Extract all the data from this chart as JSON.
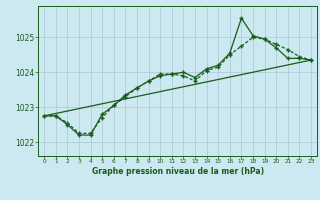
{
  "title": "Graphe pression niveau de la mer (hPa)",
  "bg_color": "#cce8f0",
  "grid_color": "#b0ccd8",
  "line_color": "#1a5c1a",
  "ylim": [
    1021.6,
    1025.9
  ],
  "xlim": [
    -0.5,
    23.5
  ],
  "yticks": [
    1022,
    1023,
    1024,
    1025
  ],
  "xticks": [
    0,
    1,
    2,
    3,
    4,
    5,
    6,
    7,
    8,
    9,
    10,
    11,
    12,
    13,
    14,
    15,
    16,
    17,
    18,
    19,
    20,
    21,
    22,
    23
  ],
  "series1_x": [
    0,
    1,
    2,
    3,
    4,
    5,
    6,
    7,
    8,
    9,
    10,
    11,
    12,
    13,
    14,
    15,
    16,
    17,
    18,
    19,
    20,
    21,
    22,
    23
  ],
  "series1_y": [
    1022.75,
    1022.75,
    1022.5,
    1022.2,
    1022.2,
    1022.8,
    1023.05,
    1023.35,
    1023.55,
    1023.75,
    1023.9,
    1023.95,
    1024.0,
    1023.85,
    1024.1,
    1024.2,
    1024.55,
    1025.55,
    1025.05,
    1024.95,
    1024.7,
    1024.4,
    1024.4,
    1024.35
  ],
  "series2_x": [
    0,
    1,
    2,
    3,
    4,
    5,
    6,
    7,
    8,
    9,
    10,
    11,
    12,
    13,
    14,
    15,
    16,
    17,
    18,
    19,
    20,
    21,
    22,
    23
  ],
  "series2_y": [
    1022.75,
    1022.75,
    1022.55,
    1022.25,
    1022.25,
    1022.7,
    1023.05,
    1023.3,
    1023.55,
    1023.75,
    1023.95,
    1023.95,
    1023.9,
    1023.75,
    1024.05,
    1024.15,
    1024.5,
    1024.75,
    1025.0,
    1024.95,
    1024.8,
    1024.65,
    1024.45,
    1024.35
  ],
  "trend_x": [
    0,
    23
  ],
  "trend_y": [
    1022.75,
    1024.35
  ]
}
